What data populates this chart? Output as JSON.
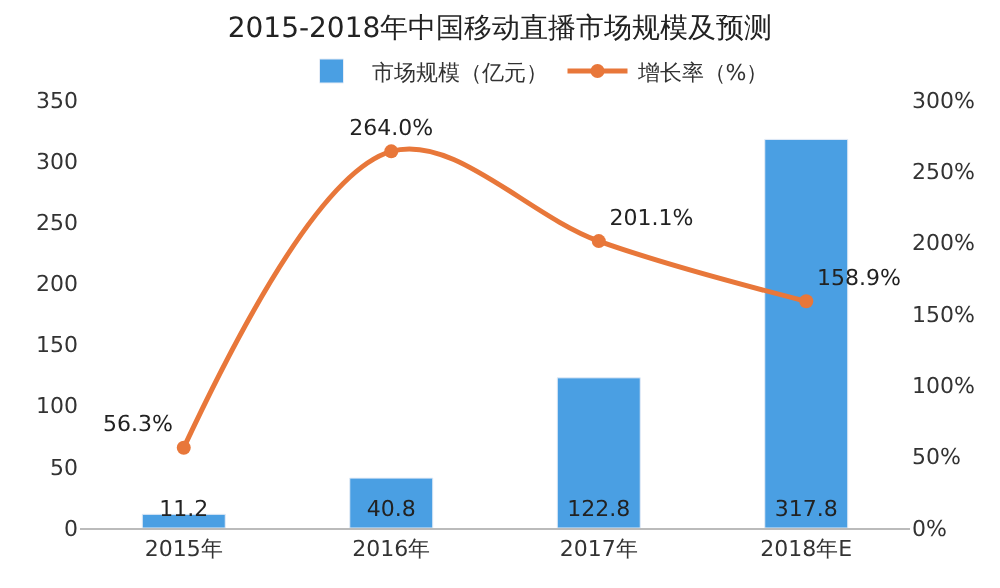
{
  "chart_data": {
    "type": "bar",
    "title": "2015-2018年中国移动直播市场规模及预测",
    "categories": [
      "2015年",
      "2016年",
      "2017年",
      "2018年E"
    ],
    "series": [
      {
        "name": "市场规模（亿元）",
        "color": "#4a9fe3",
        "values": [
          11.2,
          40.8,
          122.8,
          317.8
        ],
        "value_labels": [
          "11.2",
          "40.8",
          "122.8",
          "317.8"
        ]
      },
      {
        "name": "增长率（%）",
        "type": "line",
        "axis": "y2",
        "color": "#e8773a",
        "marker": "circle",
        "values": [
          56.3,
          264.0,
          201.1,
          158.9
        ],
        "value_labels": [
          "56.3%",
          "264.0%",
          "201.1%",
          "158.9%"
        ]
      }
    ],
    "ylim": [
      0,
      350
    ],
    "yticks": [
      0,
      50,
      100,
      150,
      200,
      250,
      300,
      350
    ],
    "y2lim": [
      0,
      300
    ],
    "y2ticks": [
      {
        "value": 0,
        "label": "0%"
      },
      {
        "value": 50,
        "label": "50%"
      },
      {
        "value": 100,
        "label": "100%"
      },
      {
        "value": 150,
        "label": "150%"
      },
      {
        "value": 200,
        "label": "200%"
      },
      {
        "value": 250,
        "label": "250%"
      },
      {
        "value": 300,
        "label": "300%"
      }
    ],
    "legend": "top"
  }
}
